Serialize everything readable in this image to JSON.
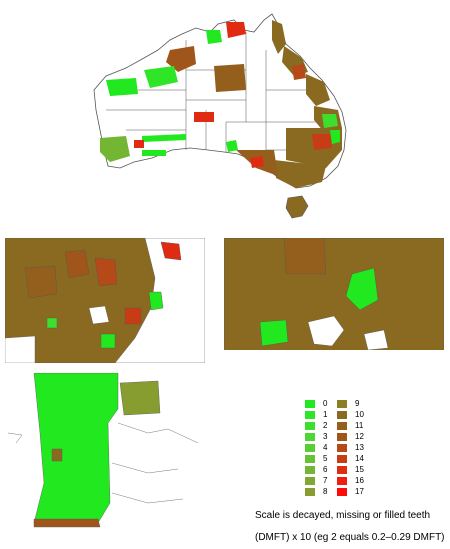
{
  "legend": {
    "items": [
      {
        "label": "0",
        "color": "#21e81f"
      },
      {
        "label": "1",
        "color": "#2ee527"
      },
      {
        "label": "2",
        "color": "#3ede2e"
      },
      {
        "label": "3",
        "color": "#4ed734"
      },
      {
        "label": "4",
        "color": "#5acc36"
      },
      {
        "label": "5",
        "color": "#68c236"
      },
      {
        "label": "6",
        "color": "#72b634"
      },
      {
        "label": "7",
        "color": "#7fa832"
      },
      {
        "label": "8",
        "color": "#889d2f"
      },
      {
        "label": "9",
        "color": "#8a7f25"
      },
      {
        "label": "10",
        "color": "#8a6a20"
      },
      {
        "label": "11",
        "color": "#945f1d"
      },
      {
        "label": "12",
        "color": "#a0561b"
      },
      {
        "label": "13",
        "color": "#b54a18"
      },
      {
        "label": "14",
        "color": "#c83c15"
      },
      {
        "label": "15",
        "color": "#dc2e12"
      },
      {
        "label": "16",
        "color": "#ee1f10"
      },
      {
        "label": "17",
        "color": "#ff0a0a"
      }
    ]
  },
  "caption": {
    "line1": "Scale is decayed, missing or filled teeth",
    "line2": "(DMFT) x 10 (eg 2 equals 0.2–0.29 DMFT)"
  },
  "colors": {
    "border": "#555555",
    "empty_region": "#ffffff",
    "brown": "#8a6a20",
    "green": "#21e81f",
    "red": "#e02a12"
  }
}
